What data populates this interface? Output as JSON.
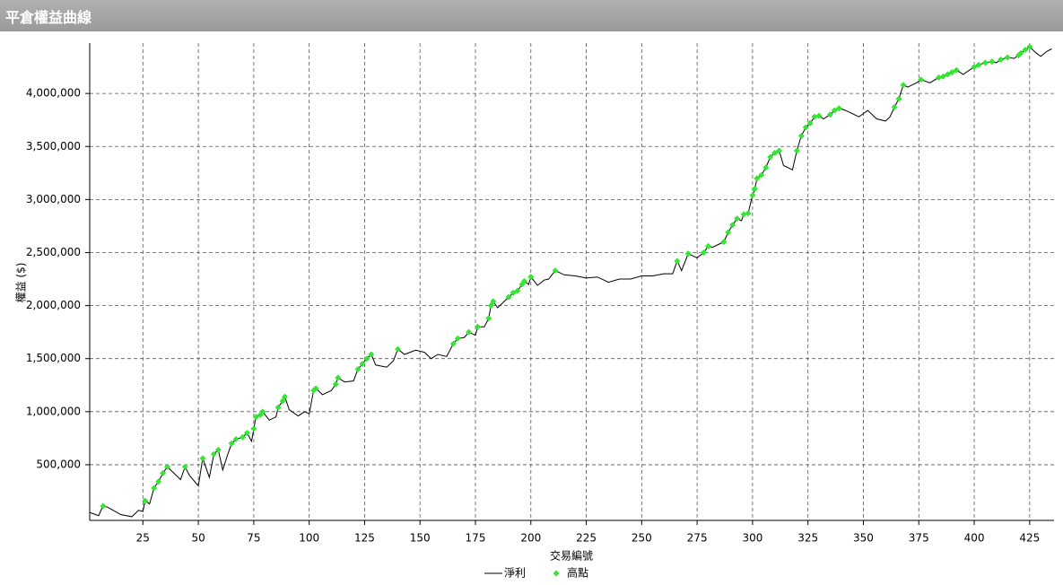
{
  "chart_data": {
    "type": "line",
    "title": "平倉權益曲線",
    "x_label": "交易編號",
    "y_label": "權益 ($)",
    "xlim": [
      1,
      436
    ],
    "ylim": [
      -25000,
      4475000
    ],
    "xticks": [
      25,
      50,
      75,
      100,
      125,
      150,
      175,
      200,
      225,
      250,
      275,
      300,
      325,
      350,
      375,
      400,
      425
    ],
    "yticks": [
      {
        "value": 500000,
        "label": "500,000"
      },
      {
        "value": 1000000,
        "label": "1,000,000"
      },
      {
        "value": 1500000,
        "label": "1,500,000"
      },
      {
        "value": 2000000,
        "label": "2,000,000"
      },
      {
        "value": 2500000,
        "label": "2,500,000"
      },
      {
        "value": 3000000,
        "label": "3,000,000"
      },
      {
        "value": 3500000,
        "label": "3,500,000"
      },
      {
        "value": 4000000,
        "label": "4,000,000"
      }
    ],
    "grid": true,
    "legend": "bottom",
    "series": [
      {
        "name": "淨利",
        "color": "#000000",
        "x": [
          1,
          5,
          7,
          9,
          15,
          20,
          23,
          25,
          26,
          28,
          30,
          32,
          34,
          36,
          38,
          42,
          44,
          46,
          50,
          52,
          55,
          57,
          59,
          61,
          63,
          65,
          67,
          70,
          72,
          74,
          75,
          76,
          78,
          79,
          82,
          85,
          86,
          88,
          89,
          91,
          95,
          98,
          100,
          102,
          103,
          106,
          110,
          112,
          113,
          116,
          120,
          122,
          124,
          126,
          128,
          130,
          135,
          138,
          140,
          143,
          148,
          152,
          155,
          158,
          162,
          165,
          167,
          170,
          172,
          175,
          176,
          179,
          181,
          182,
          183,
          185,
          190,
          192,
          194,
          196,
          197,
          199,
          200,
          203,
          206,
          208,
          211,
          215,
          220,
          225,
          230,
          235,
          240,
          245,
          250,
          255,
          260,
          264,
          266,
          268,
          271,
          275,
          278,
          280,
          282,
          285,
          287,
          289,
          291,
          293,
          295,
          296,
          298,
          300,
          301,
          302,
          304,
          306,
          308,
          310,
          312,
          314,
          318,
          320,
          322,
          324,
          326,
          328,
          330,
          332,
          335,
          337,
          339,
          342,
          348,
          352,
          356,
          360,
          362,
          364,
          366,
          368,
          370,
          374,
          376,
          380,
          384,
          386,
          388,
          390,
          392,
          395,
          400,
          402,
          405,
          408,
          410,
          412,
          415,
          418,
          420,
          421,
          423,
          425,
          428,
          430,
          433,
          435
        ],
        "values": [
          50000,
          20000,
          110000,
          100000,
          30000,
          10000,
          70000,
          60000,
          160000,
          130000,
          280000,
          340000,
          420000,
          480000,
          440000,
          360000,
          480000,
          400000,
          300000,
          560000,
          380000,
          600000,
          640000,
          450000,
          580000,
          700000,
          740000,
          760000,
          800000,
          720000,
          840000,
          950000,
          970000,
          1000000,
          920000,
          950000,
          1040000,
          1100000,
          1140000,
          1020000,
          960000,
          1000000,
          980000,
          1200000,
          1220000,
          1160000,
          1200000,
          1260000,
          1320000,
          1280000,
          1290000,
          1400000,
          1450000,
          1500000,
          1540000,
          1440000,
          1420000,
          1480000,
          1590000,
          1540000,
          1580000,
          1560000,
          1500000,
          1540000,
          1520000,
          1640000,
          1690000,
          1700000,
          1750000,
          1720000,
          1800000,
          1800000,
          1880000,
          2000000,
          2040000,
          1980000,
          2080000,
          2120000,
          2140000,
          2200000,
          2230000,
          2200000,
          2270000,
          2190000,
          2240000,
          2250000,
          2330000,
          2290000,
          2280000,
          2260000,
          2270000,
          2220000,
          2250000,
          2250000,
          2280000,
          2280000,
          2300000,
          2300000,
          2420000,
          2330000,
          2490000,
          2450000,
          2500000,
          2560000,
          2550000,
          2580000,
          2600000,
          2690000,
          2760000,
          2820000,
          2800000,
          2860000,
          2870000,
          3040000,
          3100000,
          3200000,
          3230000,
          3300000,
          3400000,
          3440000,
          3460000,
          3320000,
          3280000,
          3460000,
          3600000,
          3680000,
          3720000,
          3780000,
          3790000,
          3760000,
          3800000,
          3840000,
          3860000,
          3840000,
          3780000,
          3840000,
          3760000,
          3740000,
          3780000,
          3870000,
          3950000,
          4080000,
          4060000,
          4100000,
          4130000,
          4100000,
          4150000,
          4160000,
          4180000,
          4200000,
          4220000,
          4180000,
          4250000,
          4270000,
          4290000,
          4300000,
          4290000,
          4320000,
          4340000,
          4330000,
          4360000,
          4380000,
          4410000,
          4440000,
          4380000,
          4350000,
          4400000,
          4420000
        ]
      },
      {
        "name": "高點",
        "color": "#33e633",
        "marker": "diamond",
        "x": [
          7,
          26,
          30,
          32,
          34,
          36,
          44,
          52,
          57,
          59,
          65,
          67,
          70,
          72,
          75,
          76,
          78,
          79,
          86,
          88,
          89,
          102,
          103,
          112,
          113,
          122,
          124,
          126,
          128,
          140,
          165,
          167,
          172,
          176,
          181,
          182,
          183,
          190,
          192,
          194,
          196,
          197,
          200,
          211,
          266,
          271,
          278,
          280,
          287,
          289,
          291,
          293,
          296,
          298,
          300,
          301,
          302,
          304,
          306,
          308,
          310,
          312,
          320,
          322,
          324,
          326,
          328,
          330,
          335,
          337,
          339,
          364,
          366,
          368,
          376,
          384,
          386,
          388,
          390,
          392,
          400,
          402,
          405,
          408,
          412,
          415,
          420,
          421,
          423,
          425
        ],
        "values": [
          110000,
          160000,
          280000,
          340000,
          420000,
          480000,
          480000,
          560000,
          600000,
          640000,
          700000,
          740000,
          760000,
          800000,
          840000,
          950000,
          970000,
          1000000,
          1040000,
          1100000,
          1140000,
          1200000,
          1220000,
          1260000,
          1320000,
          1400000,
          1450000,
          1500000,
          1540000,
          1590000,
          1640000,
          1690000,
          1750000,
          1800000,
          1880000,
          2000000,
          2040000,
          2080000,
          2120000,
          2140000,
          2200000,
          2230000,
          2270000,
          2330000,
          2420000,
          2490000,
          2500000,
          2560000,
          2600000,
          2690000,
          2760000,
          2820000,
          2860000,
          2870000,
          3040000,
          3100000,
          3200000,
          3230000,
          3300000,
          3400000,
          3440000,
          3460000,
          3460000,
          3600000,
          3680000,
          3720000,
          3780000,
          3790000,
          3800000,
          3840000,
          3860000,
          3870000,
          3950000,
          4080000,
          4130000,
          4150000,
          4160000,
          4180000,
          4200000,
          4220000,
          4250000,
          4270000,
          4290000,
          4300000,
          4320000,
          4340000,
          4360000,
          4380000,
          4410000,
          4440000
        ]
      }
    ]
  }
}
